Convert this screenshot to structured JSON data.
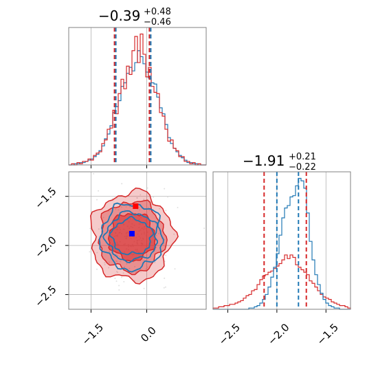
{
  "colors": {
    "series_a": "#1f77b4",
    "series_b": "#d62728",
    "marker_a": "#0000ff",
    "marker_b": "#ff0000",
    "grid": "#b0b0b0",
    "frame": "#808080"
  },
  "chart_data": [
    {
      "type": "histogram",
      "panel": "top-left",
      "title": {
        "value": "−0.39",
        "plus": "+0.48",
        "minus": "−0.46"
      },
      "xlim": [
        -2.1,
        1.6
      ],
      "x_ticks": [
        -1.5,
        0.0
      ],
      "grid": true,
      "vlines": {
        "series_a": [
          -0.85,
          0.09
        ],
        "series_b": [
          -0.85,
          0.09
        ]
      },
      "bins": {
        "start": -2.1,
        "width": 0.074,
        "series_a": [
          0,
          0,
          1,
          1,
          2,
          2,
          3,
          4,
          5,
          7,
          9,
          12,
          16,
          22,
          26,
          33,
          44,
          49,
          54,
          66,
          69,
          77,
          82,
          79,
          86,
          96,
          91,
          85,
          78,
          73,
          69,
          68,
          57,
          48,
          43,
          34,
          23,
          18,
          14,
          11,
          8,
          6,
          4,
          2,
          2,
          1,
          1,
          0,
          0,
          0
        ],
        "series_b": [
          0,
          1,
          0,
          2,
          1,
          3,
          3,
          5,
          4,
          8,
          10,
          11,
          18,
          21,
          30,
          31,
          46,
          43,
          60,
          72,
          64,
          83,
          76,
          96,
          108,
          86,
          110,
          93,
          74,
          82,
          66,
          61,
          60,
          44,
          41,
          30,
          20,
          21,
          14,
          12,
          7,
          7,
          3,
          3,
          1,
          2,
          0,
          1,
          0,
          0
        ]
      }
    },
    {
      "type": "contour",
      "panel": "bottom-left",
      "xlim": [
        -2.1,
        1.6
      ],
      "ylim": [
        -2.65,
        -1.25
      ],
      "x_ticks": [
        -1.5,
        0.0
      ],
      "x_tick_labels": [
        "−1.5",
        "0.0"
      ],
      "y_ticks": [
        -1.5,
        -2.0,
        -2.5
      ],
      "y_tick_labels": [
        "−1.5",
        "−2.0",
        "−2.5"
      ],
      "grid": true,
      "centers": {
        "series_a": [
          -0.4,
          -1.88
        ],
        "series_b": [
          -0.3,
          -1.6
        ]
      },
      "series": [
        {
          "name": "series_a",
          "color_key": "series_a",
          "levels": [
            [
              0.83,
              0.335
            ],
            [
              0.69,
              0.245
            ],
            [
              0.54,
              0.18
            ]
          ]
        },
        {
          "name": "series_b",
          "color_key": "series_b",
          "levels": [
            [
              1.1,
              0.45
            ],
            [
              0.88,
              0.36
            ],
            [
              0.62,
              0.24
            ]
          ]
        }
      ]
    },
    {
      "type": "histogram",
      "panel": "bottom-right",
      "title": {
        "value": "−1.91",
        "plus": "+0.21",
        "minus": "−0.22"
      },
      "xlim": [
        -2.65,
        -1.25
      ],
      "x_ticks": [
        -2.5,
        -2.0,
        -1.5
      ],
      "x_tick_labels": [
        "−2.5",
        "−2.0",
        "−1.5"
      ],
      "grid": true,
      "vlines": {
        "series_a": [
          -2.0,
          -1.78
        ],
        "series_b": [
          -2.13,
          -1.7
        ]
      },
      "bins": {
        "start": -2.65,
        "width": 0.028,
        "series_a": [
          0,
          0,
          0,
          0,
          0,
          0,
          0,
          0,
          0,
          0,
          0,
          0,
          0,
          1,
          1,
          2,
          3,
          5,
          8,
          12,
          18,
          26,
          34,
          45,
          60,
          74,
          82,
          84,
          91,
          92,
          100,
          106,
          104,
          98,
          78,
          55,
          40,
          28,
          20,
          13,
          8,
          5,
          3,
          2,
          1,
          1,
          0,
          0,
          0,
          0
        ],
        "series_b": [
          1,
          1,
          2,
          2,
          3,
          3,
          4,
          4,
          5,
          6,
          7,
          9,
          11,
          12,
          15,
          16,
          20,
          24,
          27,
          28,
          30,
          31,
          33,
          35,
          37,
          40,
          44,
          41,
          44,
          42,
          36,
          34,
          32,
          30,
          28,
          23,
          21,
          18,
          15,
          12,
          10,
          9,
          8,
          6,
          5,
          4,
          3,
          3,
          2,
          1
        ]
      }
    }
  ]
}
